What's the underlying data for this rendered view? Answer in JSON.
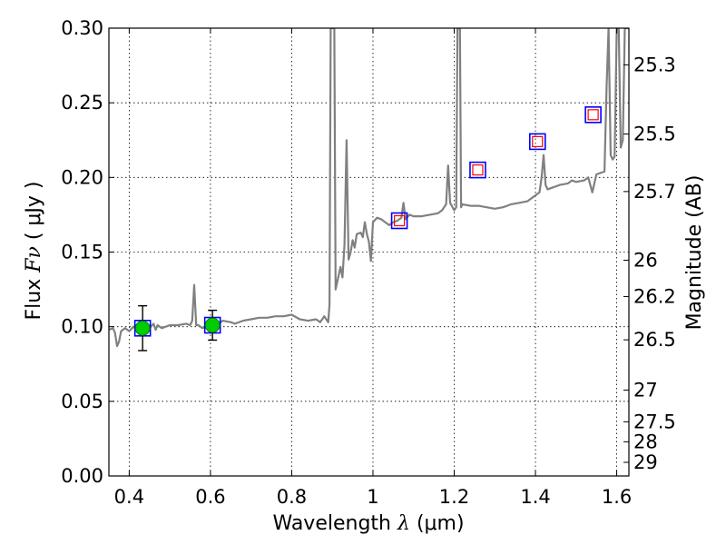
{
  "chart_data": {
    "type": "line",
    "xlabel_prefix": "Wavelength",
    "xlabel_symbol": "λ",
    "xlabel_unit": "(μm)",
    "ylabel_prefix": "Flux",
    "ylabel_symbol": "Fν",
    "ylabel_unit": "( μJy )",
    "y2label": "Magnitude (AB)",
    "xlim": [
      0.35,
      1.63
    ],
    "ylim": [
      0.0,
      0.3
    ],
    "grid": true,
    "x_ticks": [
      0.4,
      0.6,
      0.8,
      1.0,
      1.2,
      1.4,
      1.6
    ],
    "x_tick_labels": [
      "0.4",
      "0.6",
      "0.8",
      "1",
      "1.2",
      "1.4",
      "1.6"
    ],
    "y_ticks": [
      0.0,
      0.05,
      0.1,
      0.15,
      0.2,
      0.25,
      0.3
    ],
    "y_tick_labels": [
      "0.00",
      "0.05",
      "0.10",
      "0.15",
      "0.20",
      "0.25",
      "0.30"
    ],
    "mag_ticks": [
      {
        "mag": 25.3,
        "label": "25.3"
      },
      {
        "mag": 25.5,
        "label": "25.5"
      },
      {
        "mag": 25.7,
        "label": "25.7"
      },
      {
        "mag": 26,
        "label": "26"
      },
      {
        "mag": 26.2,
        "label": "26.2"
      },
      {
        "mag": 26.5,
        "label": "26.5"
      },
      {
        "mag": 27,
        "label": "27"
      },
      {
        "mag": 27.5,
        "label": "27.5"
      },
      {
        "mag": 28,
        "label": "28"
      },
      {
        "mag": 29,
        "label": "29"
      }
    ],
    "spectrum": {
      "color": "#808080",
      "points": [
        [
          0.35,
          0.098
        ],
        [
          0.36,
          0.099
        ],
        [
          0.365,
          0.096
        ],
        [
          0.37,
          0.087
        ],
        [
          0.375,
          0.09
        ],
        [
          0.38,
          0.097
        ],
        [
          0.39,
          0.099
        ],
        [
          0.4,
          0.097
        ],
        [
          0.41,
          0.1
        ],
        [
          0.42,
          0.098
        ],
        [
          0.44,
          0.1
        ],
        [
          0.45,
          0.099
        ],
        [
          0.46,
          0.102
        ],
        [
          0.465,
          0.098
        ],
        [
          0.47,
          0.101
        ],
        [
          0.48,
          0.099
        ],
        [
          0.5,
          0.101
        ],
        [
          0.52,
          0.101
        ],
        [
          0.54,
          0.102
        ],
        [
          0.55,
          0.101
        ],
        [
          0.555,
          0.104
        ],
        [
          0.56,
          0.128
        ],
        [
          0.565,
          0.101
        ],
        [
          0.57,
          0.101
        ],
        [
          0.58,
          0.099
        ],
        [
          0.6,
          0.102
        ],
        [
          0.61,
          0.099
        ],
        [
          0.62,
          0.102
        ],
        [
          0.63,
          0.104
        ],
        [
          0.65,
          0.103
        ],
        [
          0.66,
          0.102
        ],
        [
          0.68,
          0.104
        ],
        [
          0.7,
          0.105
        ],
        [
          0.72,
          0.106
        ],
        [
          0.74,
          0.106
        ],
        [
          0.76,
          0.107
        ],
        [
          0.78,
          0.107
        ],
        [
          0.8,
          0.108
        ],
        [
          0.82,
          0.105
        ],
        [
          0.84,
          0.104
        ],
        [
          0.86,
          0.105
        ],
        [
          0.87,
          0.103
        ],
        [
          0.88,
          0.107
        ],
        [
          0.89,
          0.103
        ],
        [
          0.893,
          0.115
        ],
        [
          0.896,
          0.3
        ],
        [
          0.905,
          0.3
        ],
        [
          0.908,
          0.125
        ],
        [
          0.92,
          0.14
        ],
        [
          0.925,
          0.133
        ],
        [
          0.93,
          0.155
        ],
        [
          0.935,
          0.225
        ],
        [
          0.94,
          0.145
        ],
        [
          0.945,
          0.15
        ],
        [
          0.95,
          0.158
        ],
        [
          0.955,
          0.153
        ],
        [
          0.96,
          0.162
        ],
        [
          0.97,
          0.163
        ],
        [
          0.975,
          0.16
        ],
        [
          0.98,
          0.17
        ],
        [
          0.985,
          0.162
        ],
        [
          0.99,
          0.157
        ],
        [
          0.995,
          0.144
        ],
        [
          1.0,
          0.17
        ],
        [
          1.01,
          0.173
        ],
        [
          1.02,
          0.172
        ],
        [
          1.03,
          0.17
        ],
        [
          1.04,
          0.168
        ],
        [
          1.05,
          0.17
        ],
        [
          1.06,
          0.171
        ],
        [
          1.07,
          0.173
        ],
        [
          1.075,
          0.183
        ],
        [
          1.08,
          0.172
        ],
        [
          1.09,
          0.175
        ],
        [
          1.1,
          0.174
        ],
        [
          1.12,
          0.174
        ],
        [
          1.14,
          0.175
        ],
        [
          1.16,
          0.176
        ],
        [
          1.17,
          0.178
        ],
        [
          1.18,
          0.182
        ],
        [
          1.185,
          0.208
        ],
        [
          1.19,
          0.183
        ],
        [
          1.2,
          0.178
        ],
        [
          1.205,
          0.18
        ],
        [
          1.208,
          0.3
        ],
        [
          1.214,
          0.3
        ],
        [
          1.217,
          0.18
        ],
        [
          1.22,
          0.182
        ],
        [
          1.24,
          0.181
        ],
        [
          1.26,
          0.181
        ],
        [
          1.28,
          0.18
        ],
        [
          1.3,
          0.179
        ],
        [
          1.32,
          0.18
        ],
        [
          1.33,
          0.181
        ],
        [
          1.34,
          0.182
        ],
        [
          1.36,
          0.183
        ],
        [
          1.38,
          0.184
        ],
        [
          1.4,
          0.188
        ],
        [
          1.41,
          0.19
        ],
        [
          1.415,
          0.2
        ],
        [
          1.42,
          0.215
        ],
        [
          1.425,
          0.195
        ],
        [
          1.43,
          0.192
        ],
        [
          1.44,
          0.193
        ],
        [
          1.46,
          0.195
        ],
        [
          1.48,
          0.196
        ],
        [
          1.49,
          0.198
        ],
        [
          1.5,
          0.197
        ],
        [
          1.52,
          0.198
        ],
        [
          1.53,
          0.2
        ],
        [
          1.54,
          0.19
        ],
        [
          1.55,
          0.202
        ],
        [
          1.56,
          0.203
        ],
        [
          1.57,
          0.204
        ],
        [
          1.575,
          0.26
        ],
        [
          1.58,
          0.3
        ],
        [
          1.585,
          0.215
        ],
        [
          1.59,
          0.212
        ],
        [
          1.595,
          0.214
        ],
        [
          1.6,
          0.3
        ],
        [
          1.605,
          0.3
        ],
        [
          1.61,
          0.22
        ],
        [
          1.615,
          0.225
        ],
        [
          1.62,
          0.3
        ],
        [
          1.63,
          0.3
        ]
      ]
    },
    "model_points": [
      {
        "x": 0.433,
        "y": 0.099
      },
      {
        "x": 0.605,
        "y": 0.101
      },
      {
        "x": 1.065,
        "y": 0.171
      },
      {
        "x": 1.258,
        "y": 0.205
      },
      {
        "x": 1.405,
        "y": 0.224
      },
      {
        "x": 1.542,
        "y": 0.242
      }
    ],
    "model_color": "#0000ff",
    "observations": [
      {
        "x": 0.433,
        "y": 0.099,
        "err": 0.015
      },
      {
        "x": 0.605,
        "y": 0.101,
        "err": 0.01
      }
    ],
    "observation_color": "#00cc00",
    "upper_limits": [
      {
        "x": 1.065,
        "y": 0.171
      },
      {
        "x": 1.258,
        "y": 0.205
      },
      {
        "x": 1.405,
        "y": 0.224
      },
      {
        "x": 1.542,
        "y": 0.242
      }
    ],
    "upper_limit_color": "#ff0000"
  }
}
